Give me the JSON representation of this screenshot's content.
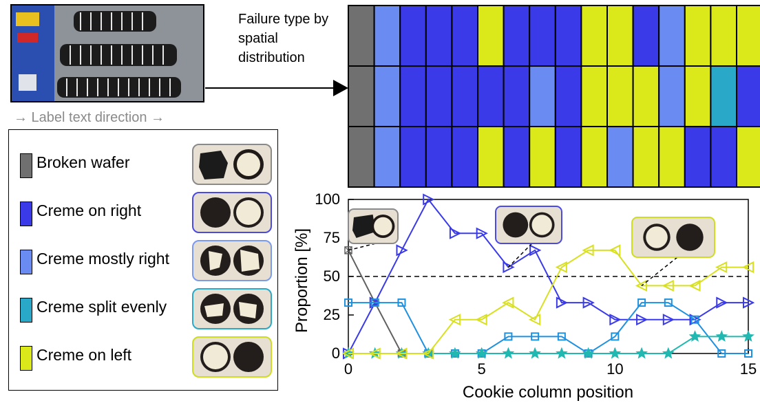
{
  "annotations": {
    "direction_label": "→ Label text direction →",
    "grid_caption": "Failure type by spatial distribution"
  },
  "colors": {
    "broken_wafer": "#707070",
    "creme_on_right": "#3a3ae8",
    "creme_mostly_right": "#6a8cf2",
    "creme_split_evenly": "#2aa8c8",
    "creme_on_left": "#dbe81a"
  },
  "legend": [
    {
      "key": "broken_wafer",
      "label": "Broken wafer",
      "border": "#8a8a8a"
    },
    {
      "key": "creme_on_right",
      "label": "Creme on right",
      "border": "#4a4ae0"
    },
    {
      "key": "creme_mostly_right",
      "label": "Creme mostly right",
      "border": "#7a9af0"
    },
    {
      "key": "creme_split_evenly",
      "label": "Creme split evenly",
      "border": "#2aa8c8"
    },
    {
      "key": "creme_on_left",
      "label": "Creme on left",
      "border": "#d0dc20"
    }
  ],
  "grid": {
    "rows": [
      [
        "broken_wafer",
        "creme_mostly_right",
        "creme_on_right",
        "creme_on_right",
        "creme_on_right",
        "creme_on_left",
        "creme_on_right",
        "creme_on_right",
        "creme_on_right",
        "creme_on_left",
        "creme_on_left",
        "creme_on_right",
        "creme_mostly_right",
        "creme_on_left",
        "creme_on_left",
        "creme_on_left"
      ],
      [
        "broken_wafer",
        "creme_mostly_right",
        "creme_on_right",
        "creme_on_right",
        "creme_on_right",
        "creme_on_right",
        "creme_on_right",
        "creme_mostly_right",
        "creme_on_right",
        "creme_on_left",
        "creme_on_left",
        "creme_on_left",
        "creme_mostly_right",
        "creme_on_left",
        "creme_split_evenly",
        "creme_on_right"
      ],
      [
        "broken_wafer",
        "creme_mostly_right",
        "creme_on_right",
        "creme_on_right",
        "creme_on_right",
        "creme_on_left",
        "creme_on_right",
        "creme_on_left",
        "creme_on_right",
        "creme_on_left",
        "creme_mostly_right",
        "creme_on_left",
        "creme_on_left",
        "creme_on_right",
        "creme_on_right",
        "creme_on_left"
      ]
    ]
  },
  "chart_data": {
    "type": "line",
    "xlabel": "Cookie column position",
    "ylabel": "Proportion [%]",
    "xlim": [
      0,
      15
    ],
    "ylim": [
      0,
      100
    ],
    "xticks": [
      0,
      5,
      10,
      15
    ],
    "yticks": [
      0,
      25,
      50,
      75,
      100
    ],
    "reference_line": 50,
    "x": [
      0,
      1,
      2,
      3,
      4,
      5,
      6,
      7,
      8,
      9,
      10,
      11,
      12,
      13,
      14,
      15
    ],
    "series": [
      {
        "key": "broken_wafer",
        "color": "#606060",
        "marker": "square-x",
        "x": [
          0,
          1,
          2
        ],
        "values": [
          67,
          33,
          0
        ]
      },
      {
        "key": "creme_on_right",
        "color": "#3a3ae8",
        "marker": "triangle-right",
        "values": [
          0,
          33,
          67,
          100,
          78,
          78,
          56,
          67,
          33,
          33,
          22,
          22,
          22,
          22,
          33,
          33
        ]
      },
      {
        "key": "creme_mostly_right",
        "color": "#1e90e0",
        "marker": "square",
        "values": [
          33,
          33,
          33,
          0,
          0,
          0,
          11,
          11,
          11,
          0,
          11,
          33,
          33,
          22,
          0,
          0
        ]
      },
      {
        "key": "creme_split_evenly",
        "color": "#20b8b0",
        "marker": "star",
        "values": [
          0,
          0,
          0,
          0,
          0,
          0,
          0,
          0,
          0,
          0,
          0,
          0,
          0,
          11,
          11,
          11
        ]
      },
      {
        "key": "creme_on_left",
        "color": "#d8e020",
        "marker": "triangle-left",
        "values": [
          0,
          0,
          0,
          0,
          22,
          22,
          33,
          22,
          56,
          67,
          67,
          44,
          44,
          44,
          56,
          56
        ]
      }
    ]
  }
}
